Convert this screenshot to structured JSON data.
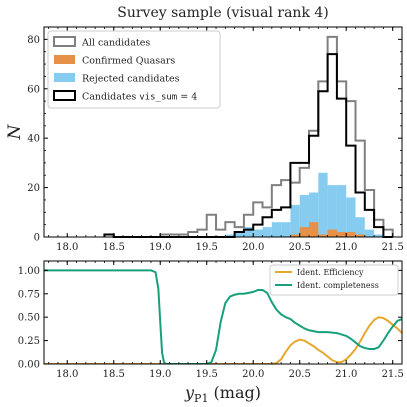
{
  "chart_data": [
    {
      "type": "bar",
      "subtype": "histogram",
      "title": "Survey sample (visual rank 4)",
      "ylabel": "N",
      "xlabel": "",
      "xlim": [
        17.75,
        21.6
      ],
      "ylim": [
        0,
        85
      ],
      "bin_width": 0.1,
      "xticks": [
        18.0,
        18.5,
        19.0,
        19.5,
        20.0,
        20.5,
        21.0,
        21.5
      ],
      "yticks": [
        0,
        20,
        40,
        60,
        80
      ],
      "legend_position": "top-left",
      "legend": [
        {
          "key": "all",
          "label": "All candidates"
        },
        {
          "key": "quasars",
          "label": "Confirmed Quasars"
        },
        {
          "key": "rejected",
          "label": "Rejected candidates"
        },
        {
          "key": "vis4",
          "label_prefix": "Candidates ",
          "label_code": "vis_sum",
          "label_suffix": " = 4"
        }
      ],
      "colors": {
        "all": "#808080",
        "quasars": "#E69147",
        "rejected": "#85CCF0",
        "vis4": "#000000"
      },
      "bin_edges": [
        18.4,
        18.5,
        18.6,
        18.7,
        18.8,
        18.9,
        19.0,
        19.1,
        19.2,
        19.3,
        19.4,
        19.5,
        19.6,
        19.7,
        19.8,
        19.9,
        20.0,
        20.1,
        20.2,
        20.3,
        20.4,
        20.5,
        20.6,
        20.7,
        20.8,
        20.9,
        21.0,
        21.1,
        21.2,
        21.3,
        21.4,
        21.5
      ],
      "series": [
        {
          "name": "All candidates",
          "style": "step",
          "values": [
            1,
            0,
            0,
            0,
            0,
            0,
            1,
            1,
            1,
            2,
            3,
            9,
            3,
            6,
            4,
            9,
            14,
            12,
            21,
            23,
            22,
            28,
            43,
            63,
            81,
            63,
            55,
            39,
            19,
            7,
            3
          ]
        },
        {
          "name": "Confirmed Quasars",
          "style": "filled",
          "values": [
            0,
            0,
            0,
            0,
            0,
            0,
            0,
            0,
            0,
            0,
            0,
            0,
            0,
            0,
            0,
            0,
            0,
            0,
            0,
            0,
            1,
            4,
            6,
            1,
            3,
            2,
            2,
            1,
            0,
            0,
            0
          ]
        },
        {
          "name": "Rejected candidates",
          "style": "filled",
          "values": [
            0,
            0,
            0,
            0,
            0,
            0,
            0,
            0,
            0,
            0,
            0,
            0,
            0,
            1,
            2,
            4,
            3,
            4,
            6,
            6,
            13,
            17,
            18,
            26,
            21,
            21,
            16,
            8,
            3,
            1,
            0
          ]
        },
        {
          "name": "Candidates vis_sum = 4",
          "style": "step",
          "values": [
            1,
            0,
            0,
            0,
            0,
            0,
            0,
            0,
            0,
            0,
            0,
            0,
            0,
            0,
            2,
            3,
            5,
            8,
            11,
            12,
            30,
            30,
            41,
            59,
            74,
            56,
            37,
            18,
            11,
            4,
            0
          ]
        }
      ]
    },
    {
      "type": "line",
      "xlabel_main": "y",
      "xlabel_sub": "P1",
      "xlabel_unit": " (mag)",
      "xlim": [
        17.75,
        21.6
      ],
      "ylim": [
        0,
        1.1
      ],
      "xticks": [
        18.0,
        18.5,
        19.0,
        19.5,
        20.0,
        20.5,
        21.0,
        21.5
      ],
      "yticks": [
        0.0,
        0.25,
        0.5,
        0.75,
        1.0
      ],
      "ytick_labels": [
        "0.00",
        "0.25",
        "0.50",
        "0.75",
        "1.00"
      ],
      "legend_position": "top-right",
      "colors": {
        "efficiency": "#E6A72E",
        "completeness": "#18A07D"
      },
      "series": [
        {
          "key": "efficiency",
          "name": "Ident. Efficiency",
          "x": [
            17.75,
            18.0,
            18.5,
            19.0,
            19.5,
            20.0,
            20.1,
            20.2,
            20.25,
            20.3,
            20.35,
            20.4,
            20.45,
            20.5,
            20.55,
            20.6,
            20.65,
            20.7,
            20.75,
            20.8,
            20.85,
            20.9,
            20.95,
            21.0,
            21.05,
            21.1,
            21.15,
            21.2,
            21.25,
            21.3,
            21.35,
            21.4,
            21.45,
            21.5,
            21.55,
            21.6
          ],
          "y": [
            0,
            0,
            0,
            0,
            0,
            0,
            0,
            0,
            0.01,
            0.05,
            0.13,
            0.2,
            0.24,
            0.26,
            0.25,
            0.22,
            0.19,
            0.15,
            0.12,
            0.08,
            0.04,
            0.02,
            0.02,
            0.05,
            0.1,
            0.16,
            0.24,
            0.33,
            0.41,
            0.47,
            0.5,
            0.49,
            0.46,
            0.42,
            0.38,
            0.33
          ]
        },
        {
          "key": "completeness",
          "name": "Ident. completeness",
          "x": [
            17.75,
            18.0,
            18.5,
            18.9,
            18.95,
            18.98,
            19.0,
            19.02,
            19.04,
            19.06,
            19.1,
            19.5,
            19.55,
            19.6,
            19.65,
            19.7,
            19.75,
            19.8,
            19.85,
            19.9,
            19.95,
            20.0,
            20.05,
            20.1,
            20.15,
            20.2,
            20.25,
            20.3,
            20.35,
            20.4,
            20.45,
            20.5,
            20.55,
            20.6,
            20.7,
            20.8,
            20.9,
            21.0,
            21.05,
            21.1,
            21.15,
            21.2,
            21.25,
            21.3,
            21.35,
            21.4,
            21.45,
            21.5,
            21.55,
            21.6
          ],
          "y": [
            1.0,
            1.0,
            1.0,
            1.0,
            0.98,
            0.8,
            0.45,
            0.12,
            0.02,
            0,
            0,
            0,
            0.02,
            0.15,
            0.45,
            0.65,
            0.72,
            0.74,
            0.75,
            0.75,
            0.76,
            0.77,
            0.79,
            0.79,
            0.76,
            0.66,
            0.58,
            0.53,
            0.5,
            0.48,
            0.44,
            0.41,
            0.38,
            0.36,
            0.34,
            0.34,
            0.33,
            0.3,
            0.27,
            0.23,
            0.19,
            0.17,
            0.16,
            0.16,
            0.18,
            0.25,
            0.33,
            0.4,
            0.46,
            0.48
          ]
        }
      ]
    }
  ]
}
